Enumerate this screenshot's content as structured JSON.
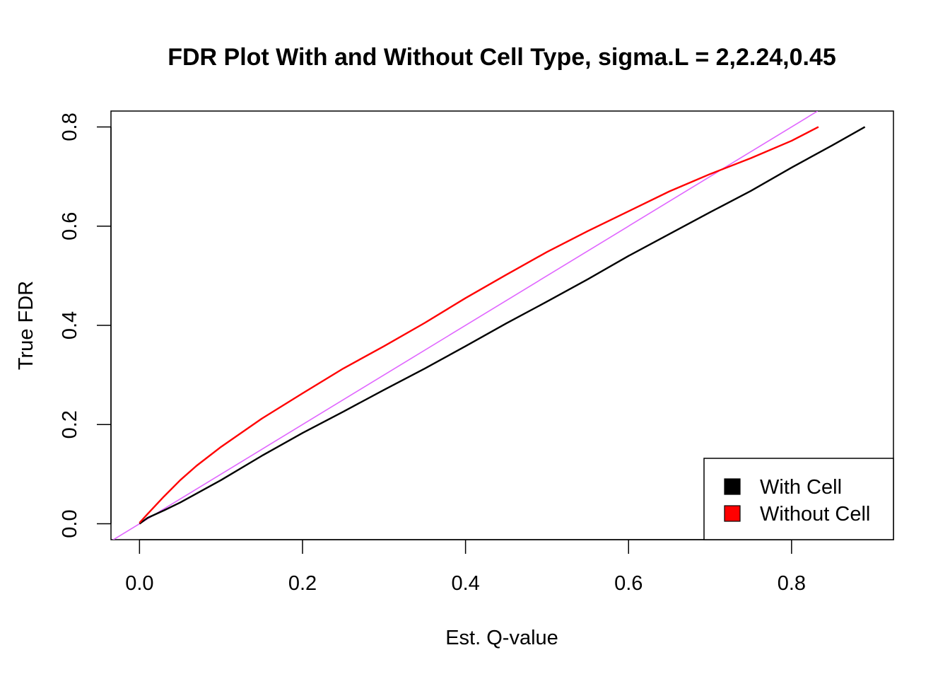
{
  "chart_data": {
    "type": "line",
    "title": "FDR Plot With and Without Cell Type, sigma.L = 2,2.24,0.45",
    "xlabel": "Est. Q-value",
    "ylabel": "True FDR",
    "xlim": [
      -0.035,
      0.925
    ],
    "ylim": [
      -0.032,
      0.832
    ],
    "x_ticks": [
      "0.0",
      "0.2",
      "0.4",
      "0.6",
      "0.8"
    ],
    "y_ticks": [
      "0.0",
      "0.2",
      "0.4",
      "0.6",
      "0.8"
    ],
    "grid": false,
    "legend": {
      "position": "bottom-right",
      "entries": [
        {
          "label": "With Cell",
          "color": "#000000"
        },
        {
          "label": "Without Cell",
          "color": "#ff0000"
        }
      ]
    },
    "series": [
      {
        "name": "With Cell",
        "color": "#000000",
        "points": [
          [
            0.0,
            0.0
          ],
          [
            0.01,
            0.012
          ],
          [
            0.03,
            0.027
          ],
          [
            0.05,
            0.043
          ],
          [
            0.1,
            0.088
          ],
          [
            0.15,
            0.137
          ],
          [
            0.2,
            0.183
          ],
          [
            0.25,
            0.226
          ],
          [
            0.3,
            0.27
          ],
          [
            0.35,
            0.313
          ],
          [
            0.4,
            0.358
          ],
          [
            0.45,
            0.404
          ],
          [
            0.5,
            0.448
          ],
          [
            0.55,
            0.493
          ],
          [
            0.6,
            0.54
          ],
          [
            0.65,
            0.584
          ],
          [
            0.7,
            0.628
          ],
          [
            0.75,
            0.671
          ],
          [
            0.8,
            0.718
          ],
          [
            0.85,
            0.763
          ],
          [
            0.89,
            0.8
          ]
        ]
      },
      {
        "name": "Without Cell",
        "color": "#ff0000",
        "points": [
          [
            0.0,
            0.002
          ],
          [
            0.01,
            0.02
          ],
          [
            0.03,
            0.055
          ],
          [
            0.05,
            0.088
          ],
          [
            0.07,
            0.117
          ],
          [
            0.1,
            0.155
          ],
          [
            0.15,
            0.212
          ],
          [
            0.2,
            0.263
          ],
          [
            0.25,
            0.313
          ],
          [
            0.3,
            0.358
          ],
          [
            0.35,
            0.405
          ],
          [
            0.4,
            0.455
          ],
          [
            0.45,
            0.502
          ],
          [
            0.5,
            0.548
          ],
          [
            0.55,
            0.59
          ],
          [
            0.6,
            0.63
          ],
          [
            0.65,
            0.67
          ],
          [
            0.7,
            0.705
          ],
          [
            0.75,
            0.737
          ],
          [
            0.8,
            0.772
          ],
          [
            0.833,
            0.8
          ]
        ]
      },
      {
        "name": "",
        "color": "#e066ff",
        "points": [
          [
            -0.035,
            -0.035
          ],
          [
            0.832,
            0.832
          ]
        ]
      }
    ]
  }
}
